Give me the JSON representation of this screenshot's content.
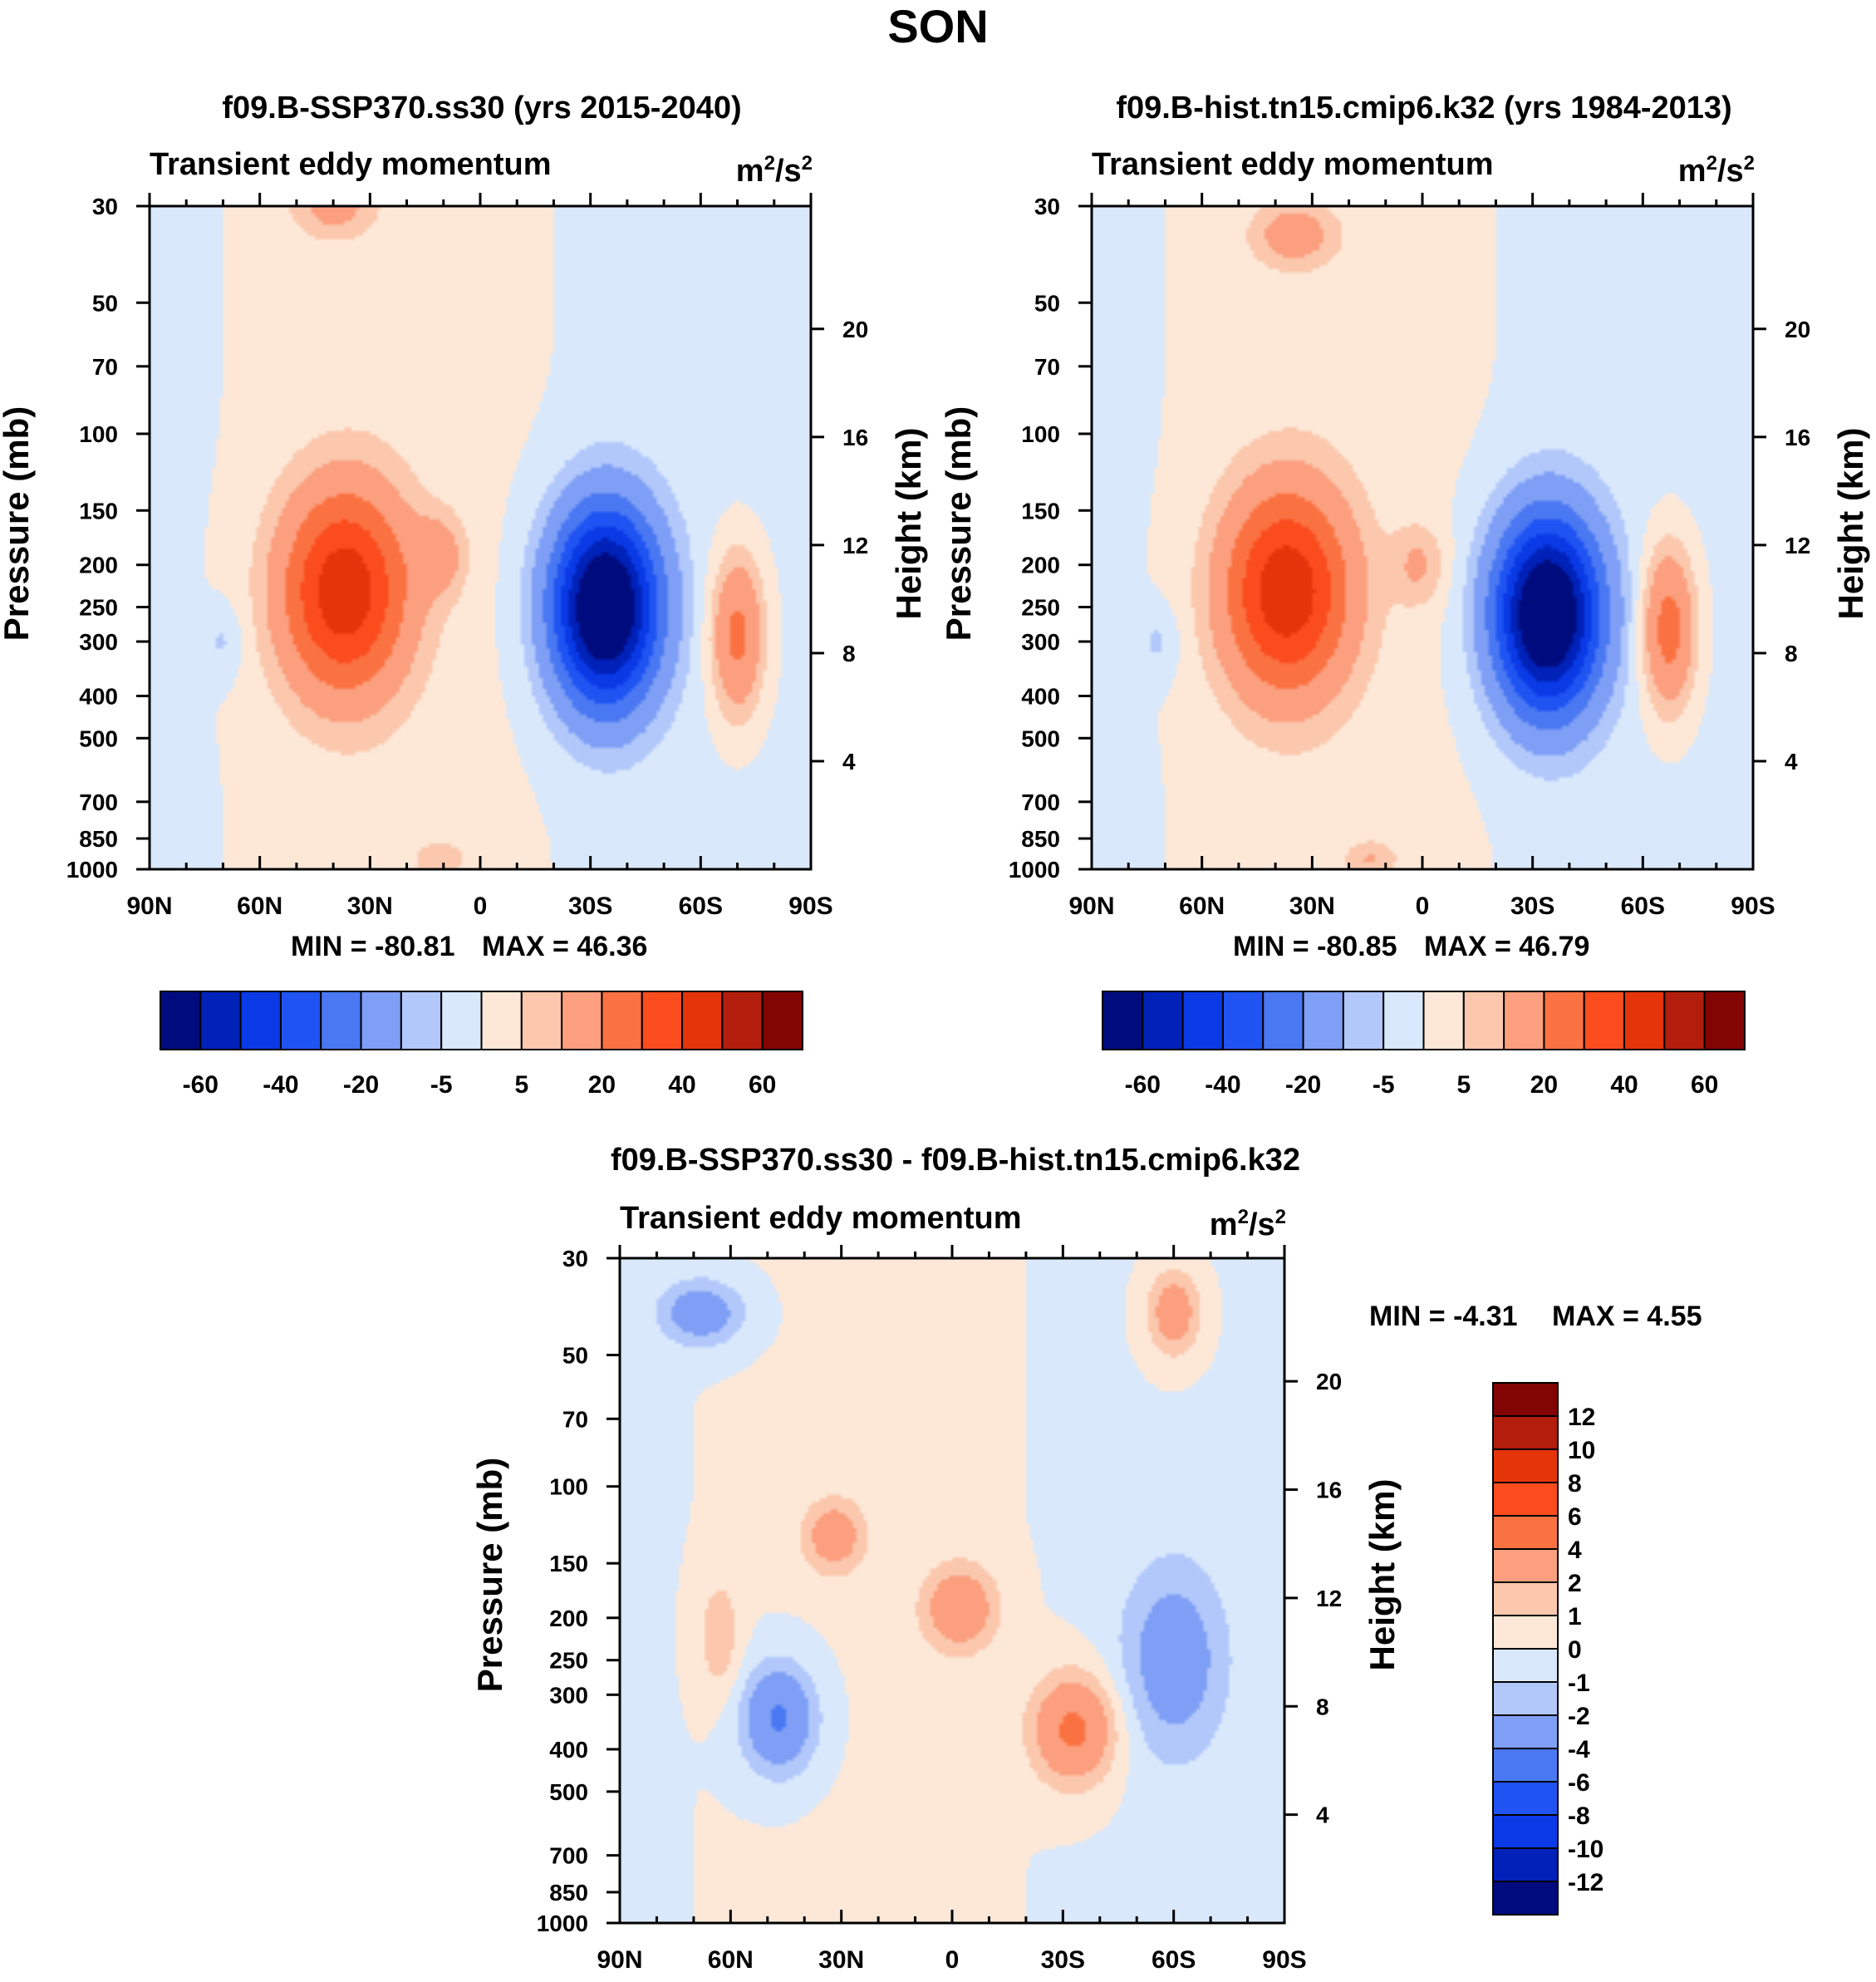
{
  "figure": {
    "title": "SON"
  },
  "chart_data": [
    {
      "type": "heatmap",
      "title": "f09.B-SSP370.ss30 (yrs 2015-2040)",
      "subtitle": "Transient eddy momentum",
      "units": "m²/s²",
      "units_base": "m",
      "units_mid": "/s",
      "units_exp": "2",
      "xlabel": "",
      "ylabel": "Pressure (mb)",
      "ylabel_right": "Height (km)",
      "x_ticks": [
        "90N",
        "60N",
        "30N",
        "0",
        "30S",
        "60S",
        "90S"
      ],
      "y_ticks": [
        "30",
        "50",
        "70",
        "100",
        "150",
        "200",
        "250",
        "300",
        "400",
        "500",
        "700",
        "850",
        "1000"
      ],
      "y_right_ticks": [
        "20",
        "16",
        "12",
        "8",
        "4"
      ],
      "min": -80.81,
      "max": 46.36,
      "min_label": "MIN = -80.81",
      "max_label": "MAX =  46.36",
      "levels": [
        -60,
        -50,
        -40,
        -30,
        -20,
        -10,
        -5,
        0,
        5,
        10,
        20,
        30,
        40,
        50,
        60
      ],
      "colorbar_labels": [
        "-60",
        "-40",
        "-20",
        "-5",
        "5",
        "20",
        "40",
        "60"
      ],
      "colors": [
        "#000c7e",
        "#0022b9",
        "#0a3ae6",
        "#1f54f3",
        "#4a78f2",
        "#7e9ff5",
        "#b2c8fb",
        "#d9e8fb",
        "#fde8d8",
        "#fbc8ae",
        "#fb9f7e",
        "#fb7242",
        "#fb4c1e",
        "#e6340a",
        "#b31d0c",
        "#820403"
      ],
      "features": [
        {
          "lat": -34,
          "lev": 250,
          "value": -80.81,
          "kind": "jet-south"
        },
        {
          "lat": 37,
          "lev": 230,
          "value": 46.36,
          "kind": "jet-north"
        },
        {
          "lat": 11,
          "lev": 190,
          "value": 12,
          "kind": "tropical"
        },
        {
          "lat": -70,
          "lev": 290,
          "value": 24,
          "kind": "polar-south"
        },
        {
          "lat": 70,
          "lev": 300,
          "value": -6,
          "kind": "polar-north"
        },
        {
          "lat": 40,
          "lev": 30,
          "value": 12,
          "kind": "strat-north"
        },
        {
          "lat": 11,
          "lev": 950,
          "value": 8,
          "kind": "surface"
        }
      ]
    },
    {
      "type": "heatmap",
      "title": "f09.B-hist.tn15.cmip6.k32 (yrs 1984-2013)",
      "subtitle": "Transient eddy momentum",
      "units": "m²/s²",
      "units_base": "m",
      "units_mid": "/s",
      "units_exp": "2",
      "xlabel": "",
      "ylabel": "Pressure (mb)",
      "ylabel_right": "Height (km)",
      "x_ticks": [
        "90N",
        "60N",
        "30N",
        "0",
        "30S",
        "60S",
        "90S"
      ],
      "y_ticks": [
        "30",
        "50",
        "70",
        "100",
        "150",
        "200",
        "250",
        "300",
        "400",
        "500",
        "700",
        "850",
        "1000"
      ],
      "y_right_ticks": [
        "20",
        "16",
        "12",
        "8",
        "4"
      ],
      "min": -80.85,
      "max": 46.79,
      "min_label": "MIN = -80.85",
      "max_label": "MAX =  46.79",
      "levels": [
        -60,
        -50,
        -40,
        -30,
        -20,
        -10,
        -5,
        0,
        5,
        10,
        20,
        30,
        40,
        50,
        60
      ],
      "colorbar_labels": [
        "-60",
        "-40",
        "-20",
        "-5",
        "5",
        "20",
        "40",
        "60"
      ],
      "colors": [
        "#000c7e",
        "#0022b9",
        "#0a3ae6",
        "#1f54f3",
        "#4a78f2",
        "#7e9ff5",
        "#b2c8fb",
        "#d9e8fb",
        "#fde8d8",
        "#fbc8ae",
        "#fb9f7e",
        "#fb7242",
        "#fb4c1e",
        "#e6340a",
        "#b31d0c",
        "#820403"
      ],
      "features": [
        {
          "lat": -34,
          "lev": 260,
          "value": -80.85,
          "kind": "jet-south"
        },
        {
          "lat": 37,
          "lev": 230,
          "value": 46.79,
          "kind": "jet-north"
        },
        {
          "lat": 1,
          "lev": 200,
          "value": 10,
          "kind": "tropical"
        },
        {
          "lat": -67,
          "lev": 280,
          "value": 26,
          "kind": "polar-south"
        },
        {
          "lat": 72,
          "lev": 300,
          "value": -6,
          "kind": "polar-north"
        },
        {
          "lat": 35,
          "lev": 35,
          "value": 14,
          "kind": "strat-north"
        },
        {
          "lat": 14,
          "lev": 950,
          "value": 9,
          "kind": "surface"
        }
      ]
    },
    {
      "type": "heatmap",
      "title": "f09.B-SSP370.ss30 - f09.B-hist.tn15.cmip6.k32",
      "subtitle": "Transient eddy momentum",
      "units": "m²/s²",
      "units_base": "m",
      "units_mid": "/s",
      "units_exp": "2",
      "xlabel": "",
      "ylabel": "Pressure (mb)",
      "ylabel_right": "Height (km)",
      "x_ticks": [
        "90N",
        "60N",
        "30N",
        "0",
        "30S",
        "60S",
        "90S"
      ],
      "y_ticks": [
        "30",
        "50",
        "70",
        "100",
        "150",
        "200",
        "250",
        "300",
        "400",
        "500",
        "700",
        "850",
        "1000"
      ],
      "y_right_ticks": [
        "20",
        "16",
        "12",
        "8",
        "4"
      ],
      "min": -4.31,
      "max": 4.55,
      "min_label": "MIN =  -4.31",
      "max_label": "MAX =   4.55",
      "levels": [
        -12,
        -10,
        -8,
        -6,
        -4,
        -2,
        -1,
        0,
        1,
        2,
        4,
        6,
        8,
        10,
        12
      ],
      "colorbar_labels": [
        "12",
        "10",
        "8",
        "6",
        "4",
        "2",
        "1",
        "0",
        "-1",
        "-2",
        "-4",
        "-6",
        "-8",
        "-10",
        "-12"
      ],
      "colors": [
        "#000c7e",
        "#0022b9",
        "#0a3ae6",
        "#1f54f3",
        "#4a78f2",
        "#7e9ff5",
        "#b2c8fb",
        "#d9e8fb",
        "#fde8d8",
        "#fbc8ae",
        "#fb9f7e",
        "#fb7242",
        "#fb4c1e",
        "#e6340a",
        "#b31d0c",
        "#820403"
      ],
      "features": [
        {
          "lat": 68,
          "lev": 40,
          "value": -3.2,
          "kind": "strat-north"
        },
        {
          "lat": 47,
          "lev": 340,
          "value": -4.3,
          "kind": "low-north"
        },
        {
          "lat": 32,
          "lev": 130,
          "value": 3.0,
          "kind": "upper-north"
        },
        {
          "lat": -2,
          "lev": 190,
          "value": 3.6,
          "kind": "upper-tropical"
        },
        {
          "lat": -33,
          "lev": 360,
          "value": 4.55,
          "kind": "mid-south"
        },
        {
          "lat": -60,
          "lev": 250,
          "value": -3.0,
          "kind": "jet-south"
        },
        {
          "lat": -60,
          "lev": 40,
          "value": 3.2,
          "kind": "strat-south"
        },
        {
          "lat": 63,
          "lev": 220,
          "value": 1.8,
          "kind": "mid-north"
        }
      ]
    }
  ]
}
